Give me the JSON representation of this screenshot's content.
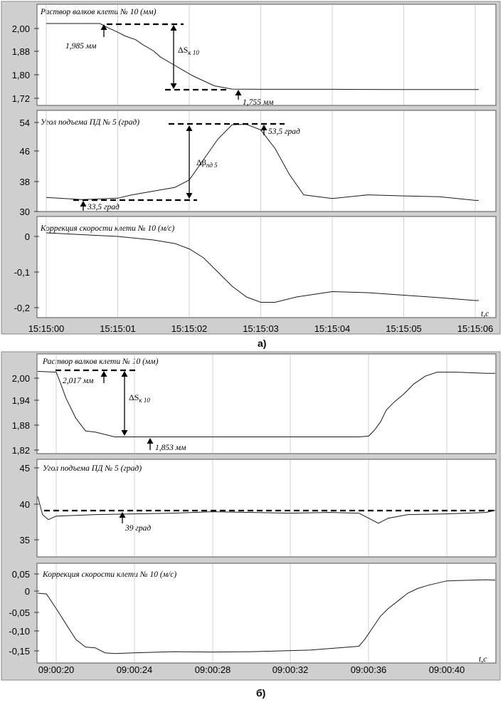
{
  "chart_data": [
    {
      "type": "line",
      "caption": "а)",
      "x_ticks": [
        "15:15:00",
        "15:15:01",
        "15:15:02",
        "15:15:03",
        "15:15:04",
        "15:15:05",
        "15:15:06"
      ],
      "x_unit_label": "t,c",
      "panels": [
        {
          "title": "Раствор валков клети № 10 (мм)",
          "y_ticks": [
            "2,00",
            "1,88",
            "1,80",
            "1,72"
          ],
          "ylim": [
            1.71,
            2.04
          ],
          "series": {
            "x": [
              0.0,
              0.75,
              0.85,
              1.0,
              1.1,
              1.25,
              1.35,
              1.5,
              1.6,
              1.75,
              1.9,
              2.05,
              2.2,
              2.35,
              2.6,
              3.0,
              4.0,
              5.0,
              6.0,
              6.05
            ],
            "y": [
              2.02,
              2.02,
              2.005,
              1.985,
              1.97,
              1.955,
              1.935,
              1.91,
              1.885,
              1.86,
              1.835,
              1.81,
              1.79,
              1.77,
              1.757,
              1.756,
              1.756,
              1.755,
              1.755,
              1.755
            ]
          },
          "annotations": [
            {
              "text": "1,985 мм"
            },
            {
              "text": "1,755 мм"
            },
            {
              "text": "ΔS",
              "sub": "к 10"
            }
          ]
        },
        {
          "title": "Угол подъема ПД № 5 (град)",
          "y_ticks": [
            "54",
            "46",
            "38",
            "30"
          ],
          "ylim": [
            30,
            55
          ],
          "series": {
            "x": [
              0.0,
              0.5,
              1.0,
              1.2,
              1.5,
              1.8,
              2.0,
              2.2,
              2.4,
              2.6,
              2.8,
              3.0,
              3.2,
              3.4,
              3.6,
              4.0,
              4.5,
              5.0,
              5.5,
              6.0,
              6.05
            ],
            "y": [
              33.8,
              33.2,
              33.6,
              34.5,
              35.5,
              36.5,
              38.5,
              44,
              49.5,
              53.4,
              53.5,
              52,
              47,
              40,
              34.5,
              33.5,
              34.5,
              34.2,
              34,
              33,
              33
            ]
          },
          "annotations": [
            {
              "text": "53,5 град"
            },
            {
              "text": "33,5 град"
            },
            {
              "text": "Δβ",
              "sub": "пд 5"
            }
          ]
        },
        {
          "title": "Коррекция скорости клети № 10 (м/с)",
          "y_ticks": [
            "0",
            "-0,1",
            "-0,2"
          ],
          "ylim": [
            -0.22,
            0.03
          ],
          "series": {
            "x": [
              0.0,
              0.5,
              1.0,
              1.5,
              1.8,
              2.0,
              2.2,
              2.4,
              2.6,
              2.8,
              3.0,
              3.2,
              3.5,
              4.0,
              4.5,
              5.0,
              5.5,
              6.0,
              6.05
            ],
            "y": [
              0.01,
              0.005,
              0.0,
              -0.01,
              -0.02,
              -0.035,
              -0.06,
              -0.1,
              -0.14,
              -0.17,
              -0.185,
              -0.185,
              -0.17,
              -0.155,
              -0.158,
              -0.165,
              -0.172,
              -0.18,
              -0.18
            ]
          },
          "annotations": []
        }
      ]
    },
    {
      "type": "line",
      "caption": "б)",
      "x_ticks": [
        "09:00:20",
        "09:00:24",
        "09:00:28",
        "09:00:32",
        "09:00:36",
        "09:00:40"
      ],
      "x_unit_label": "t,c",
      "panels": [
        {
          "title": "Раствор валков клети № 10 (мм)",
          "y_ticks": [
            "2,00",
            "1,94",
            "1,88",
            "1,82"
          ],
          "ylim": [
            1.815,
            2.03
          ],
          "series": {
            "x": [
              19.0,
              20.0,
              20.2,
              20.5,
              20.8,
              21.0,
              21.5,
              22.0,
              23.0,
              26.0,
              30.0,
              35.5,
              36.0,
              36.3,
              36.6,
              36.9,
              37.3,
              37.8,
              38.3,
              38.9,
              39.5,
              40.5,
              42.0,
              43.5
            ],
            "y": [
              2.017,
              2.015,
              1.99,
              1.95,
              1.92,
              1.9,
              1.868,
              1.865,
              1.853,
              1.853,
              1.853,
              1.853,
              1.855,
              1.87,
              1.89,
              1.92,
              1.94,
              1.96,
              1.985,
              2.005,
              2.015,
              2.015,
              2.012,
              2.012
            ]
          },
          "annotations": [
            {
              "text": "2,017 мм"
            },
            {
              "text": "1,853 мм"
            },
            {
              "text": "ΔS",
              "sub": "к 10"
            }
          ]
        },
        {
          "title": "Угол подъема ПД № 5 (град)",
          "y_ticks": [
            "45",
            "40",
            "35"
          ],
          "ylim": [
            32,
            46
          ],
          "series": {
            "x": [
              19.0,
              19.3,
              19.6,
              20.0,
              22.0,
              24.0,
              26.0,
              28.0,
              30.0,
              32.0,
              34.0,
              35.5,
              36.0,
              36.5,
              37.0,
              38.0,
              40.0,
              42.0,
              43.5
            ],
            "y": [
              41.0,
              38.5,
              37.8,
              38.3,
              38.5,
              38.6,
              38.7,
              38.9,
              38.8,
              38.7,
              38.8,
              38.7,
              38.0,
              37.3,
              38.0,
              38.5,
              38.6,
              38.8,
              39.1
            ]
          },
          "annotations": [
            {
              "text": "39 град"
            }
          ]
        },
        {
          "title": "Коррекция скорости клети № 10 (м/с)",
          "y_ticks": [
            "0,05",
            "0",
            "-0,05",
            "-0,10",
            "-0,15"
          ],
          "ylim": [
            -0.175,
            0.06
          ],
          "series": {
            "x": [
              19.0,
              19.5,
              20.0,
              20.5,
              21.0,
              21.5,
              22.0,
              22.5,
              23.0,
              24.0,
              26.0,
              28.0,
              30.0,
              33.0,
              35.5,
              35.8,
              36.2,
              36.6,
              37.0,
              37.5,
              38.0,
              38.5,
              39.0,
              40.0,
              42.0,
              43.5
            ],
            "y": [
              0.0,
              -0.002,
              -0.04,
              -0.08,
              -0.12,
              -0.14,
              -0.142,
              -0.155,
              -0.157,
              -0.155,
              -0.152,
              -0.153,
              -0.152,
              -0.148,
              -0.138,
              -0.12,
              -0.09,
              -0.06,
              -0.04,
              -0.02,
              0.0,
              0.012,
              0.02,
              0.032,
              0.035,
              0.034
            ]
          },
          "annotations": []
        }
      ]
    }
  ]
}
